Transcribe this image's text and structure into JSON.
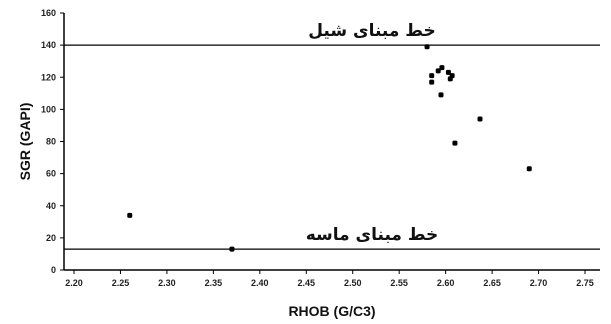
{
  "chart_data": {
    "type": "scatter",
    "title": "",
    "xlabel": "RHOB (G/C3)",
    "ylabel": "SGR (GAPI)",
    "xlim": [
      2.2,
      2.75
    ],
    "ylim": [
      0,
      160
    ],
    "xticks": [
      "2.20",
      "2.25",
      "2.30",
      "2.35",
      "2.40",
      "2.45",
      "2.50",
      "2.55",
      "2.60",
      "2.65",
      "2.70",
      "2.75"
    ],
    "yticks": [
      "0",
      "20",
      "40",
      "60",
      "80",
      "100",
      "120",
      "140",
      "160"
    ],
    "grid": false,
    "points": [
      {
        "x": 2.26,
        "y": 34
      },
      {
        "x": 2.37,
        "y": 13
      },
      {
        "x": 2.58,
        "y": 139
      },
      {
        "x": 2.585,
        "y": 121
      },
      {
        "x": 2.585,
        "y": 117
      },
      {
        "x": 2.592,
        "y": 124
      },
      {
        "x": 2.596,
        "y": 126
      },
      {
        "x": 2.603,
        "y": 123
      },
      {
        "x": 2.607,
        "y": 121
      },
      {
        "x": 2.605,
        "y": 119
      },
      {
        "x": 2.595,
        "y": 109
      },
      {
        "x": 2.637,
        "y": 94
      },
      {
        "x": 2.61,
        "y": 79
      },
      {
        "x": 2.69,
        "y": 63
      }
    ],
    "annotations": [
      {
        "label": "خط مبنای شیل",
        "y": 140
      },
      {
        "label": "خط مبنای ماسه",
        "y": 13
      }
    ]
  }
}
